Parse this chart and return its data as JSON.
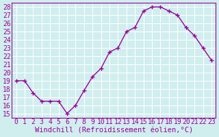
{
  "x": [
    0,
    1,
    2,
    3,
    4,
    5,
    6,
    7,
    8,
    9,
    10,
    11,
    12,
    13,
    14,
    15,
    16,
    17,
    18,
    19,
    20,
    21,
    22,
    23
  ],
  "y": [
    19,
    19,
    17.5,
    16.5,
    16.5,
    16.5,
    15,
    16,
    17.8,
    19.5,
    20.5,
    22.5,
    23,
    25,
    25.5,
    27.5,
    28,
    28,
    27.5,
    27,
    25.5,
    24.5,
    23,
    21.5
  ],
  "line_color": "#990099",
  "marker": "+",
  "marker_size": 5,
  "bg_color": "#d0eeee",
  "grid_color": "#ffffff",
  "xlabel": "Windchill (Refroidissement éolien,°C)",
  "ylabel_ticks": [
    15,
    16,
    17,
    18,
    19,
    20,
    21,
    22,
    23,
    24,
    25,
    26,
    27,
    28
  ],
  "xlim": [
    -0.5,
    23.5
  ],
  "ylim": [
    14.5,
    28.5
  ],
  "xtick_labels": [
    "0",
    "1",
    "2",
    "3",
    "4",
    "5",
    "6",
    "7",
    "8",
    "9",
    "10",
    "11",
    "12",
    "13",
    "14",
    "15",
    "16",
    "17",
    "18",
    "19",
    "20",
    "21",
    "22",
    "23"
  ],
  "xlabel_fontsize": 7.5,
  "tick_fontsize": 7
}
